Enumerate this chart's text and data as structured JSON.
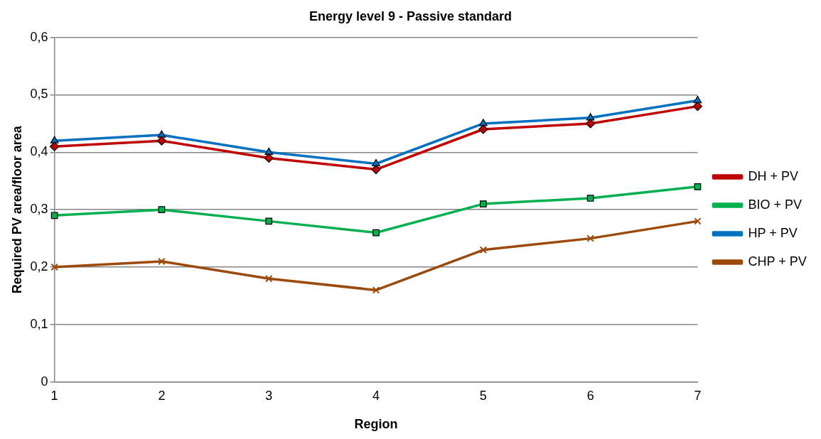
{
  "chart_data": {
    "type": "line",
    "title": "Energy level 9 - Passive standard",
    "xlabel": "Region",
    "ylabel": "Required PV area/floor area",
    "categories": [
      "1",
      "2",
      "3",
      "4",
      "5",
      "6",
      "7"
    ],
    "series": [
      {
        "name": "DH + PV",
        "color": "#c00000",
        "marker": "diamond",
        "values": [
          0.41,
          0.42,
          0.39,
          0.37,
          0.44,
          0.45,
          0.48
        ]
      },
      {
        "name": "BIO + PV",
        "color": "#00b050",
        "marker": "square",
        "values": [
          0.29,
          0.3,
          0.28,
          0.26,
          0.31,
          0.32,
          0.34
        ]
      },
      {
        "name": "HP + PV",
        "color": "#0070c0",
        "marker": "triangle",
        "values": [
          0.42,
          0.43,
          0.4,
          0.38,
          0.45,
          0.46,
          0.49
        ]
      },
      {
        "name": "CHP + PV",
        "color": "#9c4a0c",
        "marker": "cross",
        "values": [
          0.2,
          0.21,
          0.18,
          0.16,
          0.23,
          0.25,
          0.28
        ]
      }
    ],
    "ylim": [
      0,
      0.6
    ],
    "yticks": [
      0,
      {
        "value": 0.1,
        "label": "0,1"
      },
      {
        "value": 0.2,
        "label": "0,2"
      },
      {
        "value": 0.3,
        "label": "0,3"
      },
      {
        "value": 0.4,
        "label": "0,4"
      },
      {
        "value": 0.5,
        "label": "0,5"
      },
      {
        "value": 0.6,
        "label": "0,6"
      }
    ],
    "grid": "y",
    "legend": "right",
    "line_style": "solid"
  }
}
